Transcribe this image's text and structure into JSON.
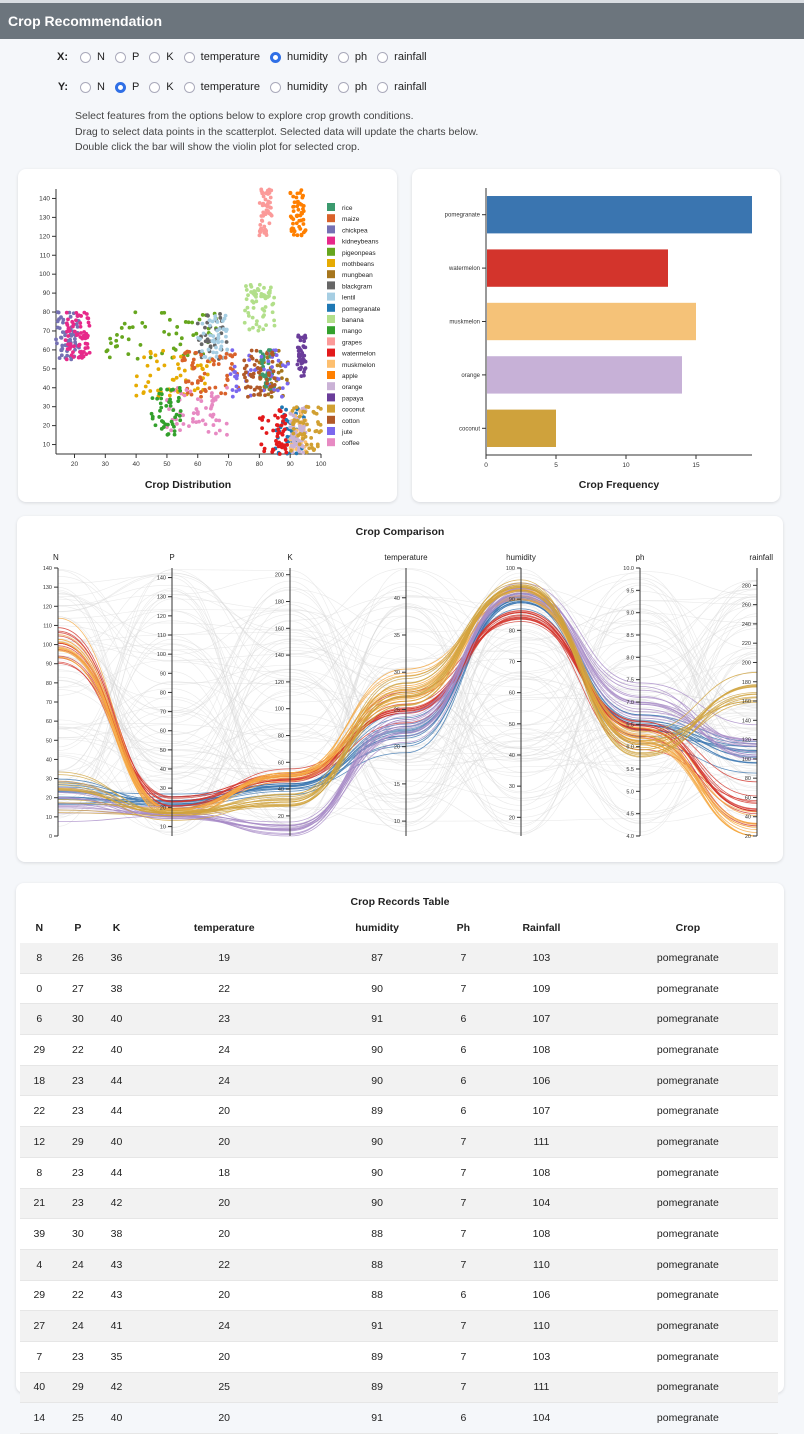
{
  "app": {
    "title": "Crop Recommendation"
  },
  "controls": {
    "x_label": "X:",
    "y_label": "Y:",
    "options": [
      "N",
      "P",
      "K",
      "temperature",
      "humidity",
      "ph",
      "rainfall"
    ],
    "x_selected": "humidity",
    "y_selected": "P"
  },
  "instructions": [
    "Select features from the options below to explore crop growth conditions.",
    "Drag to select data points in the scatterplot. Selected data will update the charts below.",
    "Double click the bar will show the violin plot for selected crop."
  ],
  "scatter": {
    "title": "Crop Distribution",
    "x_ticks": [
      20,
      30,
      40,
      50,
      60,
      70,
      80,
      90,
      100
    ],
    "y_ticks": [
      10,
      20,
      30,
      40,
      50,
      60,
      70,
      80,
      90,
      100,
      110,
      120,
      130,
      140
    ],
    "legend": [
      {
        "name": "rice",
        "color": "#3b9a6e"
      },
      {
        "name": "maize",
        "color": "#d9622b"
      },
      {
        "name": "chickpea",
        "color": "#7570b3"
      },
      {
        "name": "kidneybeans",
        "color": "#e7298a"
      },
      {
        "name": "pigeonpeas",
        "color": "#66a61e"
      },
      {
        "name": "mothbeans",
        "color": "#e6ab02"
      },
      {
        "name": "mungbean",
        "color": "#a6761d"
      },
      {
        "name": "blackgram",
        "color": "#666666"
      },
      {
        "name": "lentil",
        "color": "#a6cee3"
      },
      {
        "name": "pomegranate",
        "color": "#1f78b4"
      },
      {
        "name": "banana",
        "color": "#b2df8a"
      },
      {
        "name": "mango",
        "color": "#33a02c"
      },
      {
        "name": "grapes",
        "color": "#fb9a99"
      },
      {
        "name": "watermelon",
        "color": "#e31a1c"
      },
      {
        "name": "muskmelon",
        "color": "#fdbf6f"
      },
      {
        "name": "apple",
        "color": "#ff7f00"
      },
      {
        "name": "orange",
        "color": "#cab2d6"
      },
      {
        "name": "papaya",
        "color": "#6a3d9a"
      },
      {
        "name": "coconut",
        "color": "#d1a032"
      },
      {
        "name": "cotton",
        "color": "#b15928"
      },
      {
        "name": "jute",
        "color": "#7b68ee"
      },
      {
        "name": "coffee",
        "color": "#e78ac3"
      }
    ]
  },
  "chart_data": [
    {
      "type": "bar",
      "title": "Crop Frequency",
      "orientation": "horizontal",
      "categories": [
        "pomegranate",
        "watermelon",
        "muskmelon",
        "orange",
        "coconut"
      ],
      "values": [
        19,
        13,
        15,
        14,
        5
      ],
      "colors": [
        "#3a75b0",
        "#d3342c",
        "#f5c278",
        "#c7b1d7",
        "#cfa23c"
      ],
      "x_ticks": [
        0,
        5,
        10,
        15
      ],
      "xlim": [
        0,
        19
      ]
    },
    {
      "type": "line",
      "subtype": "parallel-coordinates",
      "title": "Crop Comparison",
      "axes": [
        {
          "name": "N",
          "min": 0,
          "max": 140,
          "ticks": [
            0,
            10,
            20,
            30,
            40,
            50,
            60,
            70,
            80,
            90,
            100,
            110,
            120,
            130,
            140
          ]
        },
        {
          "name": "P",
          "min": 5,
          "max": 145,
          "ticks": [
            10,
            20,
            30,
            40,
            50,
            60,
            70,
            80,
            90,
            100,
            110,
            120,
            130,
            140
          ]
        },
        {
          "name": "K",
          "min": 5,
          "max": 205,
          "ticks": [
            20,
            40,
            60,
            80,
            100,
            120,
            140,
            160,
            180,
            200
          ]
        },
        {
          "name": "temperature",
          "min": 8,
          "max": 44,
          "ticks": [
            10,
            15,
            20,
            25,
            30,
            35,
            40
          ]
        },
        {
          "name": "humidity",
          "min": 14,
          "max": 100,
          "ticks": [
            20,
            30,
            40,
            50,
            60,
            70,
            80,
            90,
            100
          ]
        },
        {
          "name": "ph",
          "min": 4,
          "max": 10,
          "ticks": [
            4.0,
            4.5,
            5.0,
            5.5,
            6.0,
            6.5,
            7.0,
            7.5,
            8.0,
            8.5,
            9.0,
            9.5,
            10.0
          ]
        },
        {
          "name": "rainfall",
          "min": 20,
          "max": 298,
          "ticks": [
            20,
            40,
            60,
            80,
            100,
            120,
            140,
            160,
            180,
            200,
            220,
            240,
            260,
            280
          ]
        }
      ],
      "series": [
        {
          "name": "pomegranate",
          "color": "#3a75b0",
          "values": [
            20,
            23,
            40,
            22,
            90,
            6.5,
            107
          ]
        },
        {
          "name": "watermelon",
          "color": "#d3342c",
          "values": [
            100,
            22,
            50,
            25,
            85,
            6.4,
            50
          ]
        },
        {
          "name": "muskmelon",
          "color": "#f5a942",
          "values": [
            100,
            18,
            50,
            28,
            92,
            6.3,
            25
          ]
        },
        {
          "name": "orange",
          "color": "#a78bc7",
          "values": [
            20,
            16,
            10,
            23,
            92,
            7.0,
            110
          ]
        },
        {
          "name": "coconut",
          "color": "#cfa23c",
          "values": [
            22,
            17,
            31,
            27,
            94,
            6.0,
            175
          ]
        }
      ]
    }
  ],
  "table": {
    "title": "Crop Records Table",
    "columns": [
      "N",
      "P",
      "K",
      "temperature",
      "humidity",
      "Ph",
      "Rainfall",
      "Crop"
    ],
    "rows": [
      [
        "8",
        "26",
        "36",
        "19",
        "87",
        "7",
        "103",
        "pomegranate"
      ],
      [
        "0",
        "27",
        "38",
        "22",
        "90",
        "7",
        "109",
        "pomegranate"
      ],
      [
        "6",
        "30",
        "40",
        "23",
        "91",
        "6",
        "107",
        "pomegranate"
      ],
      [
        "29",
        "22",
        "40",
        "24",
        "90",
        "6",
        "108",
        "pomegranate"
      ],
      [
        "18",
        "23",
        "44",
        "24",
        "90",
        "6",
        "106",
        "pomegranate"
      ],
      [
        "22",
        "23",
        "44",
        "20",
        "89",
        "6",
        "107",
        "pomegranate"
      ],
      [
        "12",
        "29",
        "40",
        "20",
        "90",
        "7",
        "111",
        "pomegranate"
      ],
      [
        "8",
        "23",
        "44",
        "18",
        "90",
        "7",
        "108",
        "pomegranate"
      ],
      [
        "21",
        "23",
        "42",
        "20",
        "90",
        "7",
        "104",
        "pomegranate"
      ],
      [
        "39",
        "30",
        "38",
        "20",
        "88",
        "7",
        "108",
        "pomegranate"
      ],
      [
        "4",
        "24",
        "43",
        "22",
        "88",
        "7",
        "110",
        "pomegranate"
      ],
      [
        "29",
        "22",
        "43",
        "20",
        "88",
        "6",
        "106",
        "pomegranate"
      ],
      [
        "27",
        "24",
        "41",
        "24",
        "91",
        "7",
        "110",
        "pomegranate"
      ],
      [
        "7",
        "23",
        "35",
        "20",
        "89",
        "7",
        "103",
        "pomegranate"
      ],
      [
        "40",
        "29",
        "42",
        "25",
        "89",
        "7",
        "111",
        "pomegranate"
      ],
      [
        "14",
        "25",
        "40",
        "20",
        "91",
        "6",
        "104",
        "pomegranate"
      ]
    ]
  }
}
